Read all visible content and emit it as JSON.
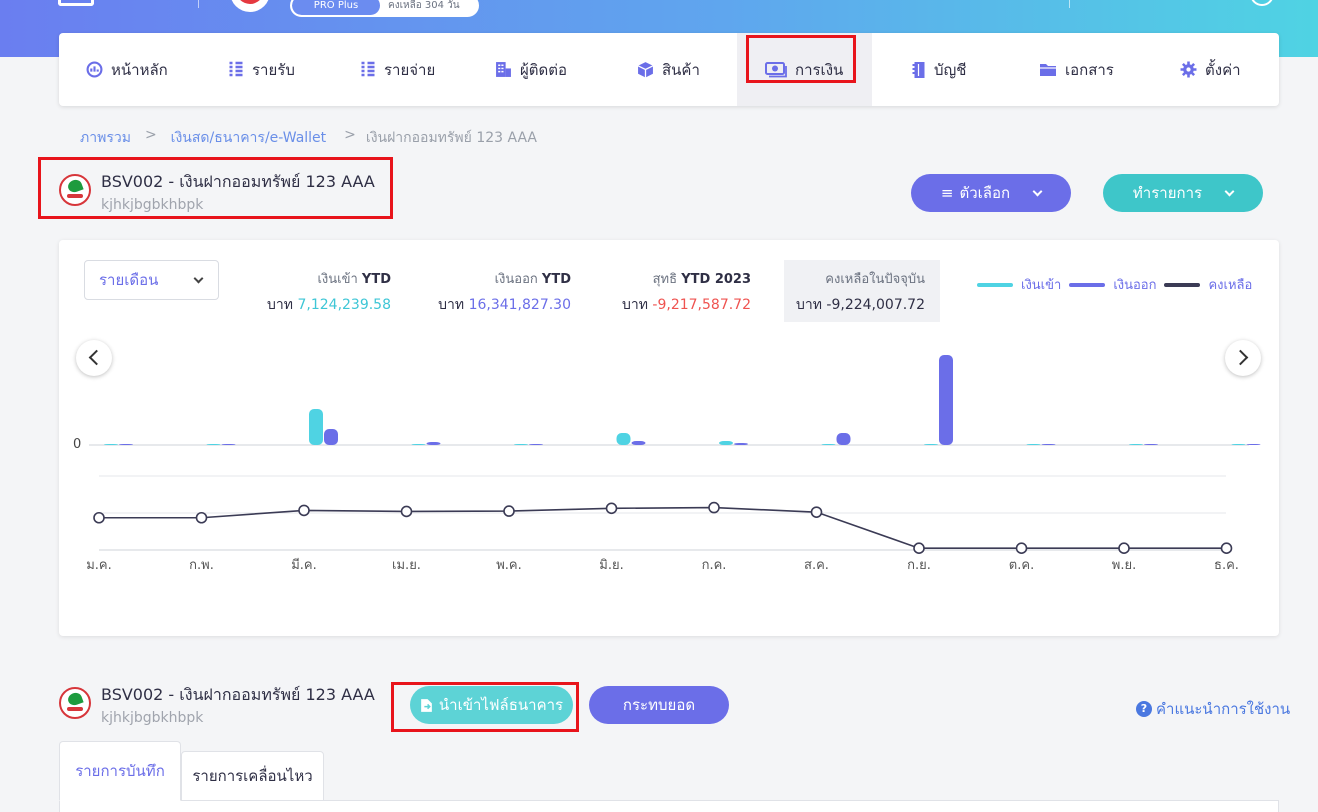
{
  "top": {
    "plan_label": "PRO Plus",
    "remain_label": "คงเหลือ 304 วัน"
  },
  "nav": [
    {
      "label": "หน้าหลัก",
      "icon": "gauge-icon"
    },
    {
      "label": "รายรับ",
      "icon": "income-list-icon"
    },
    {
      "label": "รายจ่าย",
      "icon": "expense-list-icon"
    },
    {
      "label": "ผู้ติดต่อ",
      "icon": "contacts-building-icon"
    },
    {
      "label": "สินค้า",
      "icon": "box-icon"
    },
    {
      "label": "การเงิน",
      "icon": "money-icon",
      "active": true
    },
    {
      "label": "บัญชี",
      "icon": "ledger-book-icon"
    },
    {
      "label": "เอกสาร",
      "icon": "folder-icon"
    },
    {
      "label": "ตั้งค่า",
      "icon": "gear-icon"
    }
  ],
  "breadcrumb": {
    "items": [
      "ภาพรวม",
      "เงินสด/ธนาคาร/e-Wallet",
      "เงินฝากออมทรัพย์ 123 AAA"
    ],
    "separator": ">"
  },
  "account": {
    "title": "BSV002 - เงินฝากออมทรัพย์ 123 AAA",
    "subtitle": "kjhkjbgbkhbpk"
  },
  "actions": {
    "options_label": "ตัวเลือก",
    "transact_label": "ทำรายการ",
    "import_label": "นำเข้าไฟล์ธนาคาร",
    "reconcile_label": "กระทบยอด",
    "help_label": "คำแนะนำการใช้งาน"
  },
  "summary": {
    "period_select": "รายเดือน",
    "stats": [
      {
        "label": "เงินเข้า",
        "label_bold": "YTD",
        "prefix": "บาท",
        "value": "7,124,239.58",
        "color": "#3ec6d6"
      },
      {
        "label": "เงินออก",
        "label_bold": "YTD",
        "prefix": "บาท",
        "value": "16,341,827.30",
        "color": "#6b6ee8"
      },
      {
        "label": "สุทธิ",
        "label_bold": "YTD 2023",
        "prefix": "บาท",
        "value": "-9,217,587.72",
        "color": "#ef5350"
      },
      {
        "label": "คงเหลือในปัจจุบัน",
        "label_bold": "",
        "prefix": "บาท",
        "value": "-9,224,007.72",
        "color": "#2f2f45"
      }
    ],
    "legend": [
      {
        "name": "เงินเข้า",
        "color": "#4fd3e3"
      },
      {
        "name": "เงินออก",
        "color": "#6b6ee8"
      },
      {
        "name": "คงเหลือ",
        "color": "#3b3b55"
      }
    ]
  },
  "chart_data": {
    "type": "bar",
    "categories": [
      "ม.ค.",
      "ก.พ.",
      "มี.ค.",
      "เม.ย.",
      "พ.ค.",
      "มิ.ย.",
      "ก.ค.",
      "ส.ค.",
      "ก.ย.",
      "ต.ค.",
      "พ.ย.",
      "ธ.ค."
    ],
    "zero_label": "0",
    "series": [
      {
        "name": "เงินเข้า",
        "type": "bar",
        "color": "#4fd3e3",
        "values": [
          0,
          0,
          3.6,
          0.1,
          0.1,
          1.2,
          0.4,
          0.1,
          0,
          0,
          0,
          0
        ]
      },
      {
        "name": "เงินออก",
        "type": "bar",
        "color": "#6b6ee8",
        "values": [
          0.05,
          0,
          1.6,
          0.3,
          0.05,
          0.4,
          0.2,
          1.2,
          9.0,
          0,
          0,
          0
        ]
      },
      {
        "name": "คงเหลือ",
        "type": "line",
        "color": "#3b3b55",
        "values": [
          -0.5,
          -0.5,
          1.6,
          1.3,
          1.4,
          2.2,
          2.4,
          1.1,
          -9.2,
          -9.2,
          -9.2,
          -9.2
        ]
      }
    ]
  },
  "tabs": [
    {
      "label": "รายการบันทึก",
      "active": true
    },
    {
      "label": "รายการเคลื่อนไหว",
      "active": false
    }
  ]
}
